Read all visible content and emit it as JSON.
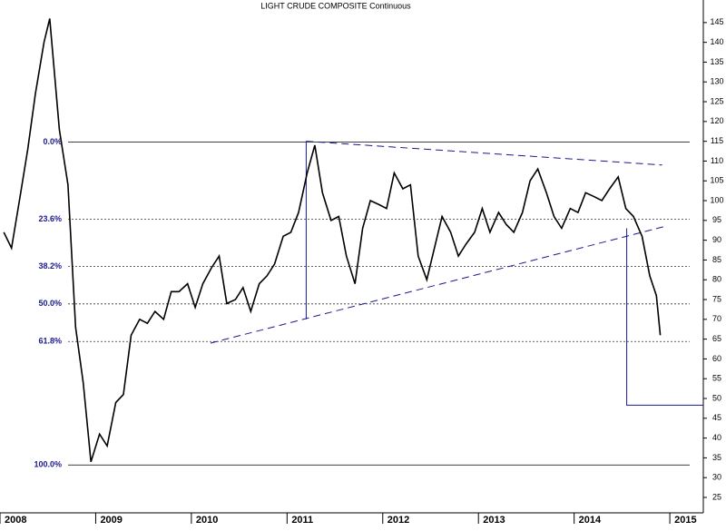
{
  "chart_data": {
    "type": "line",
    "title": "LIGHT CRUDE COMPOSITE Continuous",
    "xlim": [
      2008,
      2015.35
    ],
    "xticks": [
      2008,
      2009,
      2010,
      2011,
      2012,
      2013,
      2014,
      2015
    ],
    "ylim": [
      21.1,
      150.7
    ],
    "yticks": [
      25,
      30,
      35,
      40,
      45,
      50,
      55,
      60,
      65,
      70,
      75,
      80,
      85,
      90,
      95,
      100,
      105,
      110,
      115,
      120,
      125,
      130,
      135,
      140,
      145
    ],
    "series": [
      {
        "name": "Light Crude",
        "color": "#000000",
        "x": [
          2008.04,
          2008.12,
          2008.21,
          2008.29,
          2008.37,
          2008.46,
          2008.52,
          2008.62,
          2008.71,
          2008.79,
          2008.87,
          2008.95,
          2009.04,
          2009.12,
          2009.21,
          2009.29,
          2009.37,
          2009.46,
          2009.54,
          2009.62,
          2009.71,
          2009.79,
          2009.87,
          2009.96,
          2010.04,
          2010.12,
          2010.21,
          2010.29,
          2010.37,
          2010.46,
          2010.54,
          2010.62,
          2010.71,
          2010.79,
          2010.87,
          2010.96,
          2011.04,
          2011.12,
          2011.21,
          2011.29,
          2011.37,
          2011.46,
          2011.54,
          2011.62,
          2011.71,
          2011.79,
          2011.87,
          2011.96,
          2012.04,
          2012.12,
          2012.21,
          2012.29,
          2012.37,
          2012.46,
          2012.54,
          2012.62,
          2012.71,
          2012.79,
          2012.87,
          2012.96,
          2013.04,
          2013.12,
          2013.21,
          2013.29,
          2013.37,
          2013.46,
          2013.54,
          2013.62,
          2013.71,
          2013.79,
          2013.87,
          2013.96,
          2014.04,
          2014.12,
          2014.21,
          2014.29,
          2014.37,
          2014.46,
          2014.54,
          2014.62,
          2014.71,
          2014.79,
          2014.86,
          2014.9
        ],
        "values": [
          92,
          88,
          101,
          113,
          127,
          140,
          146,
          118,
          104,
          68,
          54,
          34,
          41,
          38,
          49,
          51,
          66,
          70,
          69,
          72,
          70,
          77,
          77,
          79,
          73,
          79,
          83,
          86,
          74,
          75,
          78,
          72,
          79,
          81,
          84,
          91,
          92,
          97,
          107,
          114,
          102,
          95,
          96,
          86,
          79,
          93,
          100,
          99,
          98,
          107,
          103,
          104,
          86,
          80,
          88,
          96,
          92,
          86,
          89,
          92,
          98,
          92,
          97,
          94,
          92,
          97,
          105,
          108,
          102,
          96,
          93,
          98,
          97,
          102,
          101,
          100,
          103,
          106,
          98,
          96,
          91,
          81,
          76,
          66
        ]
      }
    ],
    "fib_levels": [
      {
        "label": "0.0%",
        "value": 114.8
      },
      {
        "label": "23.6%",
        "value": 95.3
      },
      {
        "label": "38.2%",
        "value": 83.4
      },
      {
        "label": "50.0%",
        "value": 73.9
      },
      {
        "label": "61.8%",
        "value": 64.4
      },
      {
        "label": "100.0%",
        "value": 33.2
      }
    ],
    "trend_lines": [
      {
        "color": "#1a1a8c",
        "dashed": true,
        "x": [
          2011.2,
          2014.92
        ],
        "y": [
          115,
          109
        ]
      },
      {
        "color": "#1a1a8c",
        "dashed": true,
        "x": [
          2010.2,
          2014.95
        ],
        "y": [
          64,
          93.5
        ]
      },
      {
        "color": "#1a1a8c",
        "dashed": false,
        "x": [
          2011.2,
          2011.2
        ],
        "y": [
          115,
          70
        ]
      },
      {
        "color": "#1a1a8c",
        "dashed": false,
        "x": [
          2014.55,
          2014.55,
          2015.35
        ],
        "y": [
          93,
          48.3,
          48.3
        ]
      }
    ]
  }
}
